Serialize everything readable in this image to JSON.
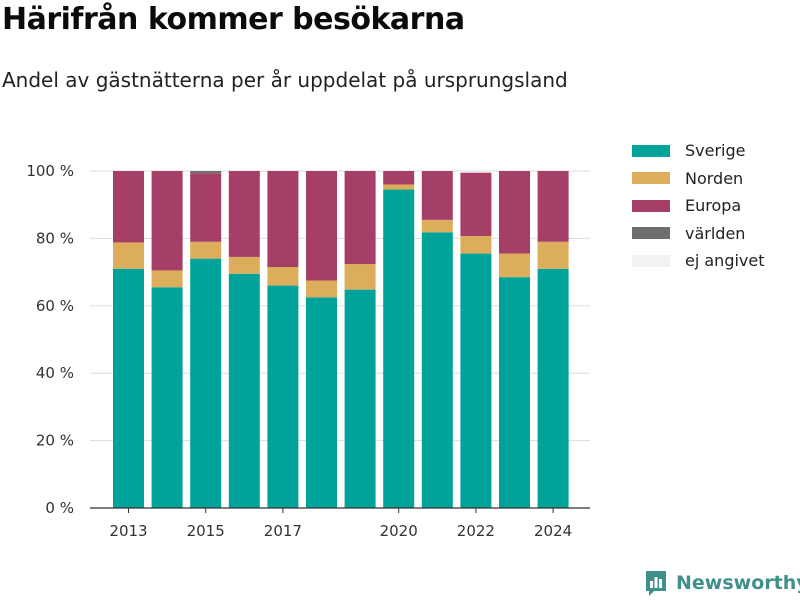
{
  "header": {
    "title": "Härifrån kommer besökarna",
    "subtitle": "Andel av gästnätterna per år uppdelat på ursprungsland"
  },
  "brand": {
    "name": "Newsworthy",
    "icon": "bar-chart-speech-bubble-icon",
    "color": "#3f8f8a"
  },
  "chart_data": {
    "type": "bar",
    "stacked": true,
    "x": [
      2013,
      2014,
      2015,
      2016,
      2017,
      2018,
      2019,
      2020,
      2021,
      2022,
      2023,
      2024
    ],
    "x_tick_labels": [
      "2013",
      "2015",
      "2017",
      "2020",
      "2022",
      "2024"
    ],
    "y_ticks": [
      0,
      20,
      40,
      60,
      80,
      100
    ],
    "y_tick_labels": [
      "0 %",
      "20 %",
      "40 %",
      "60 %",
      "80 %",
      "100 %"
    ],
    "ylim": [
      0,
      100
    ],
    "grid": true,
    "legend_position": "right",
    "series": [
      {
        "name": "Sverige",
        "color": "#00a39a",
        "values": [
          71,
          65.5,
          74,
          69.5,
          66,
          62.5,
          64.8,
          94.5,
          81.8,
          75.5,
          68.5,
          71
        ]
      },
      {
        "name": "Norden",
        "color": "#dcad5a",
        "values": [
          7.8,
          5,
          5,
          5,
          5.5,
          5,
          7.6,
          1.5,
          3.7,
          5.2,
          7,
          8
        ]
      },
      {
        "name": "Europa",
        "color": "#a63f67",
        "values": [
          21.2,
          29.5,
          20.3,
          25.5,
          28.5,
          32.5,
          27.6,
          4,
          14.5,
          18.8,
          24.5,
          21
        ]
      },
      {
        "name": "världen",
        "color": "#6e6e70",
        "values": [
          0,
          0,
          0.7,
          0,
          0,
          0,
          0,
          0,
          0,
          0,
          0,
          0
        ]
      },
      {
        "name": "ej angivet",
        "color": "#f2f2f2",
        "values": [
          0,
          0,
          0,
          0,
          0,
          0,
          0,
          0,
          0,
          0,
          0,
          0
        ]
      }
    ]
  }
}
